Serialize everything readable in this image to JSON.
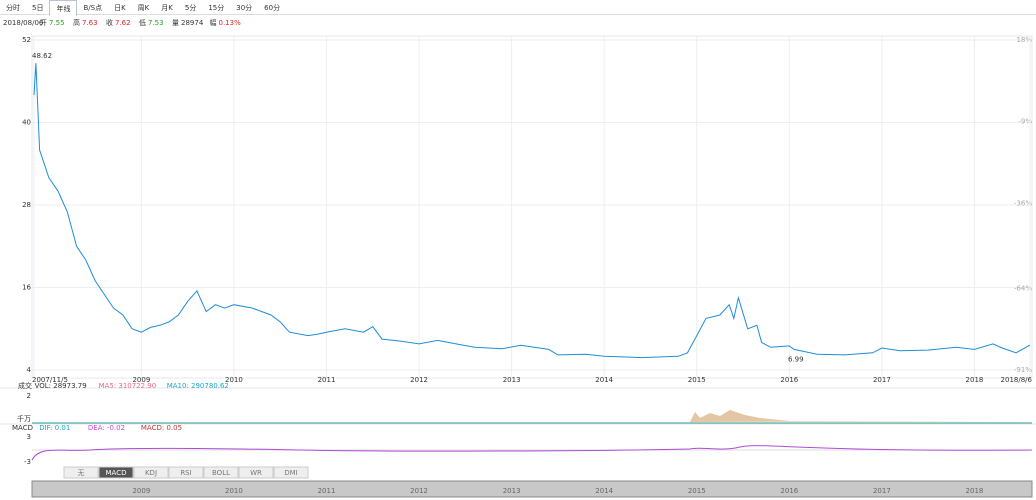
{
  "toolbar": {
    "tabs": [
      "分时",
      "5日",
      "年线",
      "B/S点",
      "日K",
      "周K",
      "月K",
      "5分",
      "15分",
      "30分",
      "60分"
    ],
    "active": 2
  },
  "info_bar": {
    "date": "2018/08/06",
    "items": [
      {
        "label": "开",
        "value": "7.55"
      },
      {
        "label": "高",
        "value": "7.63"
      },
      {
        "label": "收",
        "value": "7.62"
      },
      {
        "label": "低",
        "value": "7.53"
      },
      {
        "label": "量",
        "value": "28974"
      },
      {
        "label": "幅",
        "value": "0.13%"
      }
    ]
  },
  "chart_data": {
    "type": "line",
    "x": [
      2007.84,
      2007.86,
      2007.9,
      2008.0,
      2008.1,
      2008.2,
      2008.3,
      2008.4,
      2008.5,
      2008.6,
      2008.7,
      2008.8,
      2008.9,
      2009.0,
      2009.1,
      2009.2,
      2009.3,
      2009.4,
      2009.5,
      2009.6,
      2009.7,
      2009.8,
      2009.9,
      2010.0,
      2010.2,
      2010.4,
      2010.5,
      2010.6,
      2010.8,
      2010.9,
      2011.0,
      2011.2,
      2011.4,
      2011.5,
      2011.6,
      2011.8,
      2012.0,
      2012.2,
      2012.4,
      2012.6,
      2012.9,
      2013.1,
      2013.4,
      2013.5,
      2013.8,
      2014.0,
      2014.4,
      2014.8,
      2014.9,
      2015.0,
      2015.1,
      2015.25,
      2015.35,
      2015.4,
      2015.45,
      2015.55,
      2015.65,
      2015.7,
      2015.8,
      2016.0,
      2016.05,
      2016.3,
      2016.6,
      2016.9,
      2017.0,
      2017.2,
      2017.5,
      2017.8,
      2018.0,
      2018.2,
      2018.3,
      2018.45,
      2018.6
    ],
    "series": [
      {
        "name": "收盘",
        "color": "#1f8dd6",
        "values": [
          44,
          48.62,
          36,
          32,
          30,
          27,
          22,
          20,
          17,
          15,
          13,
          12,
          10,
          9.5,
          10.2,
          10.5,
          11,
          12,
          14,
          15.5,
          12.5,
          13.5,
          13,
          13.5,
          13,
          12,
          11,
          9.5,
          9,
          9.2,
          9.5,
          10,
          9.5,
          10.3,
          8.5,
          8.2,
          7.8,
          8.3,
          7.8,
          7.3,
          7.1,
          7.6,
          7,
          6.2,
          6.3,
          6,
          5.8,
          6,
          6.5,
          9,
          11.5,
          12,
          13.5,
          11.5,
          14.5,
          10,
          10.5,
          8,
          7.3,
          7.5,
          6.99,
          6.3,
          6.2,
          6.5,
          7.2,
          6.8,
          6.9,
          7.3,
          7,
          7.8,
          7.2,
          6.5,
          7.62
        ]
      }
    ],
    "ylim": [
      4,
      52
    ],
    "yticks": [
      4,
      16,
      28,
      40,
      52
    ],
    "y2lim": [
      -91,
      18
    ],
    "y2ticks": [
      {
        "value": 18,
        "label": "18%"
      },
      {
        "value": -9,
        "label": "-9%"
      },
      {
        "value": -36,
        "label": "-36%"
      },
      {
        "value": -64,
        "label": "-64%"
      },
      {
        "value": -91,
        "label": "-91%"
      }
    ],
    "xlim": [
      2007.84,
      2018.6
    ],
    "xticks": [
      {
        "value": 2007.84,
        "label": "2007/11/5"
      },
      2009,
      2010,
      2011,
      2012,
      2013,
      2014,
      2015,
      2016,
      2017,
      2018,
      {
        "value": 2018.6,
        "label": "2018/8/6"
      }
    ],
    "annotations": [
      {
        "text": "48.62",
        "x": 2007.86,
        "y": 48.62
      },
      {
        "text": "6.99",
        "x": 2016.05,
        "y": 6.99
      }
    ],
    "grid": true
  },
  "volume_panel": {
    "labels": [
      "成交",
      "VOL: 28973.79",
      "MA5: 310722.90",
      "MA10: 290780.62"
    ],
    "tick": "2",
    "unit": "千万"
  },
  "macd_panel": {
    "labels": [
      "MACD",
      "DIF: 0.01",
      "DEA: -0.02",
      "MACD: 0.05"
    ],
    "ticks": [
      "3",
      "-3"
    ]
  },
  "indicator_tabs": [
    "无",
    "MACD",
    "KDJ",
    "RSI",
    "BOLL",
    "WR",
    "DMI"
  ],
  "navigator_years": [
    "2009",
    "2010",
    "2011",
    "2012",
    "2013",
    "2014",
    "2015",
    "2016",
    "2017",
    "2018"
  ]
}
